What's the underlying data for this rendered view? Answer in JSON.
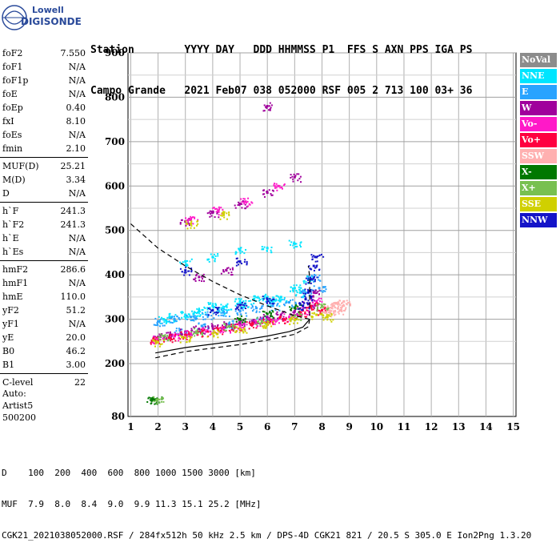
{
  "logo": {
    "line1": "Lowell",
    "line2": "DIGISONDE"
  },
  "header": {
    "line1": "Station        YYYY DAY   DDD HHMMSS P1  FFS S AXN PPS IGA PS",
    "line2": "Campo Grande   2021 Feb07 038 052000 RSF 005 2 713 100 03+ 36"
  },
  "params": {
    "group1": [
      {
        "label": "foF2",
        "value": "7.550"
      },
      {
        "label": "foF1",
        "value": "N/A"
      },
      {
        "label": "foF1p",
        "value": "N/A"
      },
      {
        "label": "foE",
        "value": "N/A"
      },
      {
        "label": "foEp",
        "value": "0.40"
      },
      {
        "label": "fxI",
        "value": "8.10"
      },
      {
        "label": "foEs",
        "value": "N/A"
      },
      {
        "label": "fmin",
        "value": "2.10"
      }
    ],
    "group2": [
      {
        "label": "MUF(D)",
        "value": "25.21"
      },
      {
        "label": "M(D)",
        "value": "3.34"
      },
      {
        "label": "D",
        "value": "N/A"
      }
    ],
    "group3": [
      {
        "label": "h`F",
        "value": "241.3"
      },
      {
        "label": "h`F2",
        "value": "241.3"
      },
      {
        "label": "h`E",
        "value": "N/A"
      },
      {
        "label": "h`Es",
        "value": "N/A"
      }
    ],
    "group4": [
      {
        "label": "hmF2",
        "value": "286.6"
      },
      {
        "label": "hmF1",
        "value": "N/A"
      },
      {
        "label": "hmE",
        "value": "110.0"
      },
      {
        "label": "yF2",
        "value": "51.2"
      },
      {
        "label": "yF1",
        "value": "N/A"
      },
      {
        "label": "yE",
        "value": "20.0"
      },
      {
        "label": "B0",
        "value": "46.2"
      },
      {
        "label": "B1",
        "value": "3.00"
      }
    ],
    "group5": [
      {
        "label": "C-level",
        "value": "22"
      }
    ]
  },
  "auto": {
    "line1": "Auto:",
    "line2": "Artist5",
    "line3": "500200"
  },
  "legend": [
    {
      "label": "NoVal",
      "color": "#8c8c8c"
    },
    {
      "label": "NNE",
      "color": "#00e5ff"
    },
    {
      "label": "E",
      "color": "#29a3ff"
    },
    {
      "label": "W",
      "color": "#a0009c"
    },
    {
      "label": "Vo-",
      "color": "#ff19c8"
    },
    {
      "label": "Vo+",
      "color": "#ff0040"
    },
    {
      "label": "SSW",
      "color": "#ffb0b0"
    },
    {
      "label": "X-",
      "color": "#007800"
    },
    {
      "label": "X+",
      "color": "#78c050"
    },
    {
      "label": "SSE",
      "color": "#d0d000"
    },
    {
      "label": "NNW",
      "color": "#1414c8"
    }
  ],
  "footer": {
    "line1": "D    100  200  400  600  800 1000 1500 3000 [km]",
    "line2": "MUF  7.9  8.0  8.4  9.0  9.9 11.3 15.1 25.2 [MHz]",
    "line3": "CGK21_2021038052000.RSF / 284fx512h 50 kHz 2.5 km / DPS-4D CGK21 821 / 20.5 S 305.0 E Ion2Png 1.3.20"
  },
  "chart_data": {
    "type": "scatter",
    "xlabel": "",
    "ylabel": "",
    "xlim": [
      0.9,
      15.1
    ],
    "ylim": [
      80,
      900
    ],
    "x_ticks": [
      1,
      2,
      3,
      4,
      5,
      6,
      7,
      8,
      9,
      10,
      11,
      12,
      13,
      14,
      15
    ],
    "y_ticks": [
      80,
      200,
      300,
      400,
      500,
      600,
      700,
      800,
      900
    ],
    "grid": true,
    "series": [
      {
        "name": "NNE",
        "color": "#00e5ff",
        "points": [
          [
            2.2,
            300
          ],
          [
            3.0,
            310
          ],
          [
            3.5,
            320
          ],
          [
            4.0,
            330
          ],
          [
            4.5,
            330
          ],
          [
            5.0,
            340
          ],
          [
            5.5,
            345
          ],
          [
            6.0,
            350
          ],
          [
            6.5,
            350
          ],
          [
            7.0,
            370
          ],
          [
            7.5,
            390
          ],
          [
            3.0,
            430
          ],
          [
            4.0,
            440
          ],
          [
            5.0,
            455
          ],
          [
            6.0,
            460
          ],
          [
            7.0,
            470
          ],
          [
            2.5,
            305
          ],
          [
            3.3,
            312
          ],
          [
            4.2,
            322
          ],
          [
            5.2,
            335
          ],
          [
            6.2,
            340
          ],
          [
            7.2,
            360
          ]
        ]
      },
      {
        "name": "E",
        "color": "#29a3ff",
        "points": [
          [
            2.0,
            295
          ],
          [
            2.6,
            300
          ],
          [
            3.2,
            305
          ],
          [
            3.8,
            310
          ],
          [
            4.4,
            315
          ],
          [
            5.0,
            318
          ],
          [
            5.6,
            325
          ],
          [
            6.2,
            330
          ],
          [
            6.8,
            338
          ],
          [
            7.4,
            360
          ],
          [
            7.7,
            395
          ],
          [
            7.9,
            370
          ],
          [
            2.8,
            275
          ],
          [
            3.6,
            285
          ],
          [
            4.6,
            290
          ],
          [
            5.8,
            300
          ]
        ]
      },
      {
        "name": "W",
        "color": "#a0009c",
        "points": [
          [
            2.0,
            260
          ],
          [
            2.5,
            265
          ],
          [
            3.0,
            272
          ],
          [
            3.5,
            278
          ],
          [
            4.0,
            283
          ],
          [
            4.5,
            288
          ],
          [
            5.0,
            293
          ],
          [
            5.5,
            298
          ],
          [
            6.0,
            305
          ],
          [
            6.5,
            310
          ],
          [
            7.0,
            318
          ],
          [
            7.5,
            335
          ],
          [
            7.7,
            360
          ],
          [
            3.0,
            520
          ],
          [
            4.0,
            540
          ],
          [
            5.0,
            560
          ],
          [
            6.0,
            585
          ],
          [
            7.0,
            620
          ],
          [
            3.5,
            395
          ],
          [
            4.5,
            410
          ],
          [
            6.0,
            780
          ]
        ]
      },
      {
        "name": "Vo-",
        "color": "#ff19c8",
        "points": [
          [
            2.0,
            255
          ],
          [
            2.6,
            262
          ],
          [
            3.2,
            268
          ],
          [
            3.8,
            275
          ],
          [
            4.4,
            280
          ],
          [
            5.0,
            286
          ],
          [
            5.6,
            292
          ],
          [
            6.2,
            298
          ],
          [
            6.8,
            305
          ],
          [
            7.3,
            320
          ],
          [
            7.8,
            340
          ],
          [
            3.2,
            525
          ],
          [
            4.2,
            545
          ],
          [
            5.2,
            565
          ],
          [
            6.4,
            600
          ]
        ]
      },
      {
        "name": "Vo+",
        "color": "#ff0040",
        "points": [
          [
            1.9,
            252
          ],
          [
            2.4,
            258
          ],
          [
            3.0,
            265
          ],
          [
            3.6,
            270
          ],
          [
            4.2,
            276
          ],
          [
            4.8,
            282
          ],
          [
            5.4,
            288
          ],
          [
            6.0,
            294
          ],
          [
            6.6,
            300
          ],
          [
            7.2,
            312
          ],
          [
            7.6,
            330
          ],
          [
            8.0,
            320
          ]
        ]
      },
      {
        "name": "SSW",
        "color": "#ffb0b0",
        "points": [
          [
            8.2,
            325
          ],
          [
            8.4,
            330
          ],
          [
            8.6,
            335
          ],
          [
            8.8,
            340
          ],
          [
            8.3,
            315
          ],
          [
            8.7,
            320
          ]
        ]
      },
      {
        "name": "X-",
        "color": "#007800",
        "points": [
          [
            5.0,
            300
          ],
          [
            6.0,
            312
          ],
          [
            7.0,
            325
          ],
          [
            1.8,
            118
          ],
          [
            1.9,
            118
          ]
        ]
      },
      {
        "name": "X+",
        "color": "#78c050",
        "points": [
          [
            2.2,
            262
          ],
          [
            3.4,
            272
          ],
          [
            4.6,
            284
          ],
          [
            5.8,
            296
          ],
          [
            7.0,
            308
          ],
          [
            8.0,
            330
          ],
          [
            1.95,
            118
          ]
        ]
      },
      {
        "name": "SSE",
        "color": "#d0d000",
        "points": [
          [
            2.0,
            248
          ],
          [
            3.0,
            258
          ],
          [
            4.0,
            268
          ],
          [
            5.0,
            278
          ],
          [
            6.0,
            288
          ],
          [
            7.0,
            298
          ],
          [
            7.8,
            310
          ],
          [
            8.2,
            305
          ],
          [
            3.2,
            515
          ],
          [
            4.4,
            535
          ]
        ]
      },
      {
        "name": "NNW",
        "color": "#1414c8",
        "points": [
          [
            7.3,
            330
          ],
          [
            7.5,
            360
          ],
          [
            7.6,
            390
          ],
          [
            7.7,
            420
          ],
          [
            7.8,
            440
          ],
          [
            7.4,
            345
          ],
          [
            4.0,
            320
          ],
          [
            5.0,
            332
          ],
          [
            6.0,
            345
          ],
          [
            3.0,
            410
          ],
          [
            5.0,
            430
          ]
        ]
      }
    ],
    "profile_solid": [
      [
        1.9,
        224
      ],
      [
        3.0,
        236
      ],
      [
        4.0,
        244
      ],
      [
        5.0,
        252
      ],
      [
        6.0,
        262
      ],
      [
        6.8,
        272
      ],
      [
        7.3,
        282
      ],
      [
        7.55,
        300
      ]
    ],
    "profile_dashed": [
      [
        1.9,
        213
      ],
      [
        3.0,
        227
      ],
      [
        4.0,
        235
      ],
      [
        5.0,
        243
      ],
      [
        6.0,
        253
      ],
      [
        7.0,
        266
      ],
      [
        7.5,
        283
      ],
      [
        7.55,
        300
      ],
      [
        7.55,
        395
      ],
      [
        7.5,
        420
      ]
    ],
    "profile_dashed_upper": [
      [
        1.0,
        515
      ],
      [
        2.0,
        460
      ],
      [
        3.0,
        420
      ],
      [
        4.0,
        385
      ],
      [
        5.0,
        355
      ],
      [
        6.0,
        330
      ],
      [
        7.0,
        308
      ],
      [
        7.55,
        300
      ]
    ]
  }
}
